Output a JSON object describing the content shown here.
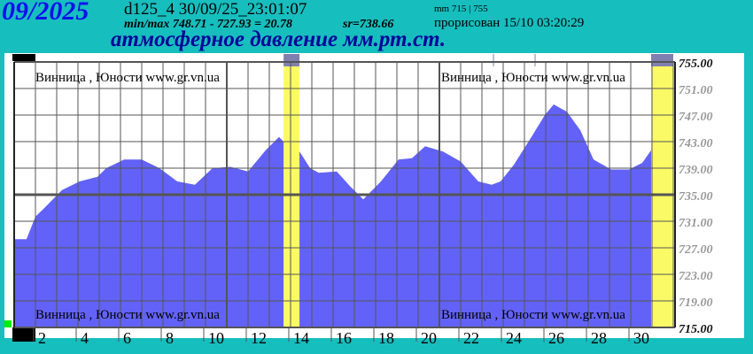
{
  "header": {
    "month": "09/2025",
    "code": "d125_4   30/09/25_23:01:07",
    "minmax": "min/max   748.71 - 727.93 = 20.78",
    "sr": "sr=738.66",
    "mm_range": "mm 715 | 755",
    "drawn": "прорисован 15/10 03:20:29",
    "title": "атмосферное давление мм.рт.ст."
  },
  "watermark": "Винница , Юности  www.gr.vn.ua",
  "colors": {
    "fill": "#6262f8",
    "highlight": "#fafa66",
    "cap": "#8080b0",
    "background": "#17bebe"
  },
  "chart_data": {
    "type": "area",
    "ylim": [
      715,
      755
    ],
    "xlim": [
      1,
      32
    ],
    "y_ticks": [
      "755.00",
      "751.00",
      "747.00",
      "743.00",
      "739.00",
      "735.00",
      "731.00",
      "727.00",
      "723.00",
      "719.00",
      "715.00"
    ],
    "x_ticks": [
      "2",
      "4",
      "6",
      "8",
      "10",
      "12",
      "14",
      "16",
      "18",
      "20",
      "22",
      "24",
      "26",
      "28",
      "30"
    ],
    "grid": true,
    "highlight_days": [
      [
        13.67,
        14.42
      ],
      [
        30.96,
        32
      ]
    ],
    "points": [
      [
        1.0,
        728.3
      ],
      [
        1.58,
        728.3
      ],
      [
        2.0,
        731.7
      ],
      [
        2.42,
        733
      ],
      [
        3.25,
        735.7
      ],
      [
        4.08,
        737
      ],
      [
        4.92,
        737.7
      ],
      [
        5.33,
        739
      ],
      [
        6.17,
        740.3
      ],
      [
        7.0,
        740.3
      ],
      [
        7.83,
        739
      ],
      [
        8.67,
        737
      ],
      [
        9.5,
        736.5
      ],
      [
        10.33,
        739
      ],
      [
        11.17,
        739.2
      ],
      [
        12.0,
        738.5
      ],
      [
        12.83,
        741.7
      ],
      [
        13.46,
        743.7
      ],
      [
        13.67,
        743
      ],
      [
        14.42,
        741.5
      ],
      [
        14.92,
        739
      ],
      [
        15.33,
        738.3
      ],
      [
        16.17,
        738.5
      ],
      [
        16.79,
        736.3
      ],
      [
        17.42,
        734.3
      ],
      [
        18.25,
        737
      ],
      [
        19.08,
        740.3
      ],
      [
        19.71,
        740.5
      ],
      [
        20.33,
        742.3
      ],
      [
        21.17,
        741.5
      ],
      [
        22.0,
        740
      ],
      [
        22.83,
        737
      ],
      [
        23.46,
        736.5
      ],
      [
        23.88,
        737
      ],
      [
        24.5,
        739.5
      ],
      [
        25.33,
        743.7
      ],
      [
        25.96,
        747
      ],
      [
        26.38,
        748.6
      ],
      [
        27.0,
        747.5
      ],
      [
        27.63,
        744.7
      ],
      [
        28.25,
        740.3
      ],
      [
        29.08,
        738.8
      ],
      [
        29.92,
        738.8
      ],
      [
        30.54,
        739.8
      ],
      [
        30.96,
        741.7
      ]
    ]
  }
}
